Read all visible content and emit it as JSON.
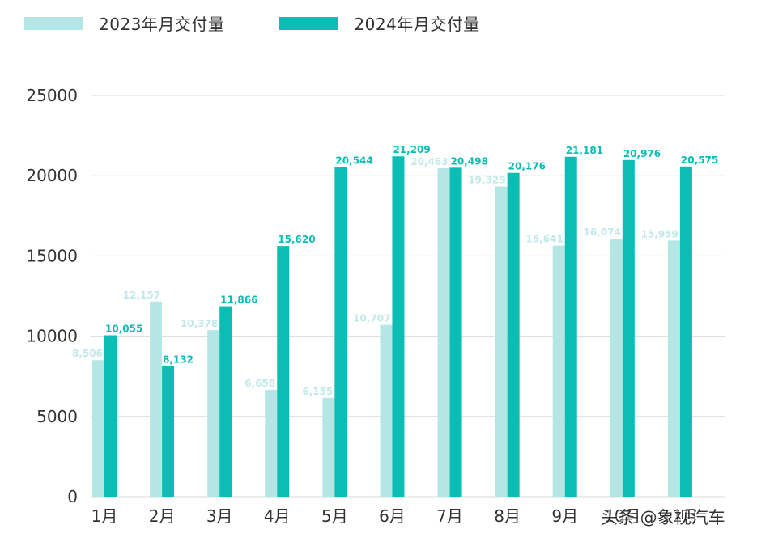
{
  "colors": {
    "series_2023": "#b3e6e5",
    "series_2024": "#0cbdb6",
    "label_2023": "#c2e9e8",
    "label_2024": "#0cbdb6",
    "grid": "#d9d9d9",
    "axis_text": "#333333"
  },
  "watermark": "头条 @象视汽车",
  "chart_data": {
    "type": "bar",
    "categories": [
      "1月",
      "2月",
      "3月",
      "4月",
      "5月",
      "6月",
      "7月",
      "8月",
      "9月",
      "10月",
      "11月"
    ],
    "series": [
      {
        "name": "2023年月交付量",
        "values": [
          8506,
          12157,
          10378,
          6658,
          6155,
          10707,
          20463,
          19329,
          15641,
          16074,
          15959
        ],
        "labels": [
          "8,506",
          "12,157",
          "10,378",
          "6,658",
          "6,155",
          "10,707",
          "20,463",
          "19,329",
          "15,641",
          "16,074",
          "15,959"
        ]
      },
      {
        "name": "2024年月交付量",
        "values": [
          10055,
          8132,
          11866,
          15620,
          20544,
          21209,
          20498,
          20176,
          21181,
          20976,
          20575
        ],
        "labels": [
          "10,055",
          "8,132",
          "11,866",
          "15,620",
          "20,544",
          "21,209",
          "20,498",
          "20,176",
          "21,181",
          "20,976",
          "20,575"
        ]
      }
    ],
    "ylim": [
      0,
      25000
    ],
    "yticks": [
      "0",
      "5000",
      "10000",
      "15000",
      "20000",
      "25000"
    ],
    "grid": true,
    "legend": "top-left"
  }
}
